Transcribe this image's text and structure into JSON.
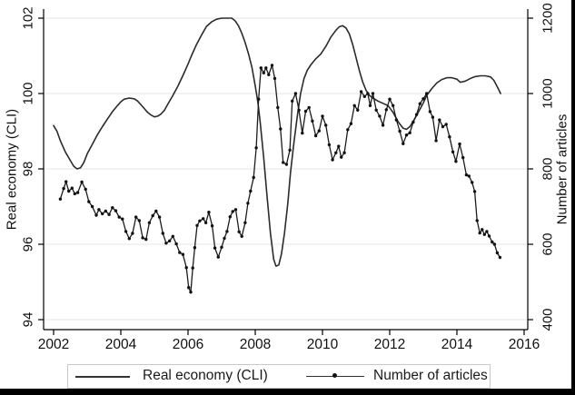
{
  "chart_data": {
    "type": "line",
    "title": "",
    "grid": "horizontal",
    "x_axis": {
      "label": "",
      "range": [
        2002,
        2016
      ],
      "ticks": [
        2002,
        2004,
        2006,
        2008,
        2010,
        2012,
        2014,
        2016
      ]
    },
    "y_axis_left": {
      "label": "Real economy (CLI)",
      "range": [
        94,
        102
      ],
      "ticks": [
        94,
        96,
        98,
        100,
        102
      ]
    },
    "y_axis_right": {
      "label": "Number of articles",
      "range": [
        400,
        1200
      ],
      "ticks": [
        400,
        600,
        800,
        1000,
        1200
      ]
    },
    "legend": {
      "position": "bottom",
      "items": [
        {
          "label": "Real economy (CLI)",
          "marker": "line"
        },
        {
          "label": "Number of articles",
          "marker": "line-dot"
        }
      ]
    },
    "series": [
      {
        "name": "Real economy (CLI)",
        "axis": "left",
        "marker": "none",
        "color": "#2b2b2b",
        "points": [
          [
            2002.0,
            99.15
          ],
          [
            2002.1,
            99.0
          ],
          [
            2002.2,
            98.75
          ],
          [
            2002.35,
            98.45
          ],
          [
            2002.5,
            98.22
          ],
          [
            2002.6,
            98.07
          ],
          [
            2002.7,
            98.0
          ],
          [
            2002.8,
            98.03
          ],
          [
            2002.9,
            98.17
          ],
          [
            2003.0,
            98.4
          ],
          [
            2003.15,
            98.65
          ],
          [
            2003.3,
            98.9
          ],
          [
            2003.45,
            99.12
          ],
          [
            2003.6,
            99.32
          ],
          [
            2003.75,
            99.52
          ],
          [
            2003.9,
            99.68
          ],
          [
            2004.0,
            99.78
          ],
          [
            2004.1,
            99.85
          ],
          [
            2004.25,
            99.88
          ],
          [
            2004.4,
            99.86
          ],
          [
            2004.5,
            99.8
          ],
          [
            2004.6,
            99.7
          ],
          [
            2004.7,
            99.6
          ],
          [
            2004.8,
            99.5
          ],
          [
            2004.9,
            99.43
          ],
          [
            2005.0,
            99.38
          ],
          [
            2005.1,
            99.4
          ],
          [
            2005.2,
            99.46
          ],
          [
            2005.3,
            99.56
          ],
          [
            2005.4,
            99.72
          ],
          [
            2005.55,
            99.95
          ],
          [
            2005.7,
            100.2
          ],
          [
            2005.85,
            100.48
          ],
          [
            2006.0,
            100.78
          ],
          [
            2006.1,
            101.0
          ],
          [
            2006.25,
            101.3
          ],
          [
            2006.4,
            101.55
          ],
          [
            2006.55,
            101.78
          ],
          [
            2006.7,
            101.9
          ],
          [
            2006.85,
            101.97
          ],
          [
            2007.0,
            102.0
          ],
          [
            2007.15,
            102.0
          ],
          [
            2007.3,
            102.0
          ],
          [
            2007.4,
            101.93
          ],
          [
            2007.5,
            101.8
          ],
          [
            2007.6,
            101.6
          ],
          [
            2007.7,
            101.35
          ],
          [
            2007.8,
            101.05
          ],
          [
            2007.9,
            100.7
          ],
          [
            2008.0,
            100.2
          ],
          [
            2008.08,
            99.75
          ],
          [
            2008.15,
            99.2
          ],
          [
            2008.25,
            98.3
          ],
          [
            2008.35,
            97.3
          ],
          [
            2008.45,
            96.3
          ],
          [
            2008.55,
            95.6
          ],
          [
            2008.62,
            95.42
          ],
          [
            2008.7,
            95.45
          ],
          [
            2008.78,
            95.75
          ],
          [
            2008.87,
            96.3
          ],
          [
            2008.97,
            97.1
          ],
          [
            2009.05,
            97.9
          ],
          [
            2009.15,
            98.7
          ],
          [
            2009.25,
            99.4
          ],
          [
            2009.35,
            100.0
          ],
          [
            2009.45,
            100.4
          ],
          [
            2009.55,
            100.62
          ],
          [
            2009.65,
            100.76
          ],
          [
            2009.8,
            100.92
          ],
          [
            2009.95,
            101.05
          ],
          [
            2010.1,
            101.25
          ],
          [
            2010.25,
            101.5
          ],
          [
            2010.4,
            101.68
          ],
          [
            2010.5,
            101.77
          ],
          [
            2010.6,
            101.8
          ],
          [
            2010.7,
            101.74
          ],
          [
            2010.8,
            101.58
          ],
          [
            2010.9,
            101.3
          ],
          [
            2011.0,
            100.95
          ],
          [
            2011.1,
            100.6
          ],
          [
            2011.2,
            100.3
          ],
          [
            2011.3,
            100.08
          ],
          [
            2011.4,
            99.95
          ],
          [
            2011.5,
            99.88
          ],
          [
            2011.65,
            99.8
          ],
          [
            2011.8,
            99.74
          ],
          [
            2011.95,
            99.68
          ],
          [
            2012.1,
            99.5
          ],
          [
            2012.25,
            99.25
          ],
          [
            2012.4,
            99.08
          ],
          [
            2012.5,
            99.05
          ],
          [
            2012.6,
            99.12
          ],
          [
            2012.7,
            99.26
          ],
          [
            2012.85,
            99.5
          ],
          [
            2013.0,
            99.75
          ],
          [
            2013.1,
            99.95
          ],
          [
            2013.25,
            100.13
          ],
          [
            2013.4,
            100.28
          ],
          [
            2013.55,
            100.37
          ],
          [
            2013.7,
            100.42
          ],
          [
            2013.85,
            100.42
          ],
          [
            2014.0,
            100.38
          ],
          [
            2014.1,
            100.3
          ],
          [
            2014.25,
            100.33
          ],
          [
            2014.4,
            100.4
          ],
          [
            2014.55,
            100.45
          ],
          [
            2014.7,
            100.47
          ],
          [
            2014.85,
            100.47
          ],
          [
            2015.0,
            100.44
          ],
          [
            2015.1,
            100.35
          ],
          [
            2015.2,
            100.18
          ],
          [
            2015.3,
            100.0
          ]
        ]
      },
      {
        "name": "Number of articles",
        "axis": "right",
        "marker": "dot",
        "color": "#1c1c1c",
        "points": [
          [
            2002.2,
            720
          ],
          [
            2002.3,
            748
          ],
          [
            2002.37,
            766
          ],
          [
            2002.45,
            741
          ],
          [
            2002.55,
            749
          ],
          [
            2002.63,
            734
          ],
          [
            2002.72,
            737
          ],
          [
            2002.84,
            765
          ],
          [
            2002.95,
            746
          ],
          [
            2003.05,
            713
          ],
          [
            2003.15,
            700
          ],
          [
            2003.27,
            677
          ],
          [
            2003.35,
            692
          ],
          [
            2003.45,
            681
          ],
          [
            2003.55,
            688
          ],
          [
            2003.65,
            679
          ],
          [
            2003.75,
            697
          ],
          [
            2003.85,
            689
          ],
          [
            2003.95,
            672
          ],
          [
            2004.05,
            667
          ],
          [
            2004.15,
            634
          ],
          [
            2004.25,
            615
          ],
          [
            2004.35,
            629
          ],
          [
            2004.45,
            672
          ],
          [
            2004.55,
            663
          ],
          [
            2004.65,
            617
          ],
          [
            2004.75,
            613
          ],
          [
            2004.85,
            657
          ],
          [
            2004.95,
            676
          ],
          [
            2005.05,
            688
          ],
          [
            2005.15,
            672
          ],
          [
            2005.25,
            629
          ],
          [
            2005.35,
            603
          ],
          [
            2005.45,
            609
          ],
          [
            2005.55,
            621
          ],
          [
            2005.65,
            601
          ],
          [
            2005.75,
            578
          ],
          [
            2005.85,
            573
          ],
          [
            2005.95,
            538
          ],
          [
            2006.02,
            485
          ],
          [
            2006.08,
            473
          ],
          [
            2006.14,
            537
          ],
          [
            2006.2,
            591
          ],
          [
            2006.27,
            650
          ],
          [
            2006.35,
            662
          ],
          [
            2006.45,
            668
          ],
          [
            2006.53,
            657
          ],
          [
            2006.62,
            685
          ],
          [
            2006.72,
            649
          ],
          [
            2006.8,
            590
          ],
          [
            2006.9,
            566
          ],
          [
            2007.0,
            592
          ],
          [
            2007.08,
            616
          ],
          [
            2007.16,
            634
          ],
          [
            2007.25,
            673
          ],
          [
            2007.33,
            687
          ],
          [
            2007.42,
            692
          ],
          [
            2007.52,
            633
          ],
          [
            2007.6,
            621
          ],
          [
            2007.7,
            657
          ],
          [
            2007.78,
            709
          ],
          [
            2007.86,
            741
          ],
          [
            2007.95,
            777
          ],
          [
            2008.03,
            856
          ],
          [
            2008.1,
            985
          ],
          [
            2008.17,
            1068
          ],
          [
            2008.25,
            1055
          ],
          [
            2008.32,
            1068
          ],
          [
            2008.4,
            1050
          ],
          [
            2008.5,
            1075
          ],
          [
            2008.58,
            1040
          ],
          [
            2008.67,
            963
          ],
          [
            2008.75,
            906
          ],
          [
            2008.83,
            817
          ],
          [
            2008.93,
            812
          ],
          [
            2009.03,
            850
          ],
          [
            2009.1,
            980
          ],
          [
            2009.2,
            1000
          ],
          [
            2009.3,
            956
          ],
          [
            2009.4,
            895
          ],
          [
            2009.5,
            953
          ],
          [
            2009.6,
            963
          ],
          [
            2009.7,
            927
          ],
          [
            2009.8,
            888
          ],
          [
            2009.9,
            901
          ],
          [
            2010.0,
            940
          ],
          [
            2010.1,
            916
          ],
          [
            2010.2,
            864
          ],
          [
            2010.3,
            824
          ],
          [
            2010.4,
            843
          ],
          [
            2010.48,
            860
          ],
          [
            2010.56,
            831
          ],
          [
            2010.65,
            843
          ],
          [
            2010.75,
            904
          ],
          [
            2010.85,
            920
          ],
          [
            2010.95,
            968
          ],
          [
            2011.05,
            956
          ],
          [
            2011.15,
            1005
          ],
          [
            2011.25,
            992
          ],
          [
            2011.35,
            1000
          ],
          [
            2011.42,
            968
          ],
          [
            2011.5,
            1000
          ],
          [
            2011.6,
            956
          ],
          [
            2011.7,
            940
          ],
          [
            2011.8,
            916
          ],
          [
            2011.9,
            957
          ],
          [
            2012.0,
            985
          ],
          [
            2012.1,
            968
          ],
          [
            2012.2,
            930
          ],
          [
            2012.3,
            900
          ],
          [
            2012.4,
            867
          ],
          [
            2012.5,
            890
          ],
          [
            2012.6,
            896
          ],
          [
            2012.7,
            924
          ],
          [
            2012.8,
            944
          ],
          [
            2012.9,
            973
          ],
          [
            2013.0,
            986
          ],
          [
            2013.1,
            1000
          ],
          [
            2013.2,
            952
          ],
          [
            2013.28,
            937
          ],
          [
            2013.38,
            875
          ],
          [
            2013.48,
            930
          ],
          [
            2013.58,
            912
          ],
          [
            2013.68,
            918
          ],
          [
            2013.78,
            885
          ],
          [
            2013.88,
            845
          ],
          [
            2013.97,
            820
          ],
          [
            2014.08,
            866
          ],
          [
            2014.18,
            830
          ],
          [
            2014.28,
            784
          ],
          [
            2014.36,
            781
          ],
          [
            2014.45,
            764
          ],
          [
            2014.53,
            740
          ],
          [
            2014.6,
            663
          ],
          [
            2014.68,
            630
          ],
          [
            2014.75,
            639
          ],
          [
            2014.82,
            626
          ],
          [
            2014.89,
            634
          ],
          [
            2014.96,
            622
          ],
          [
            2015.05,
            606
          ],
          [
            2015.12,
            600
          ],
          [
            2015.2,
            577
          ],
          [
            2015.28,
            565
          ]
        ]
      }
    ],
    "colors": {
      "line": "#2b2b2b",
      "grid": "#e4e4e4",
      "axis": "#000000",
      "frame_bars": "#000000"
    }
  }
}
